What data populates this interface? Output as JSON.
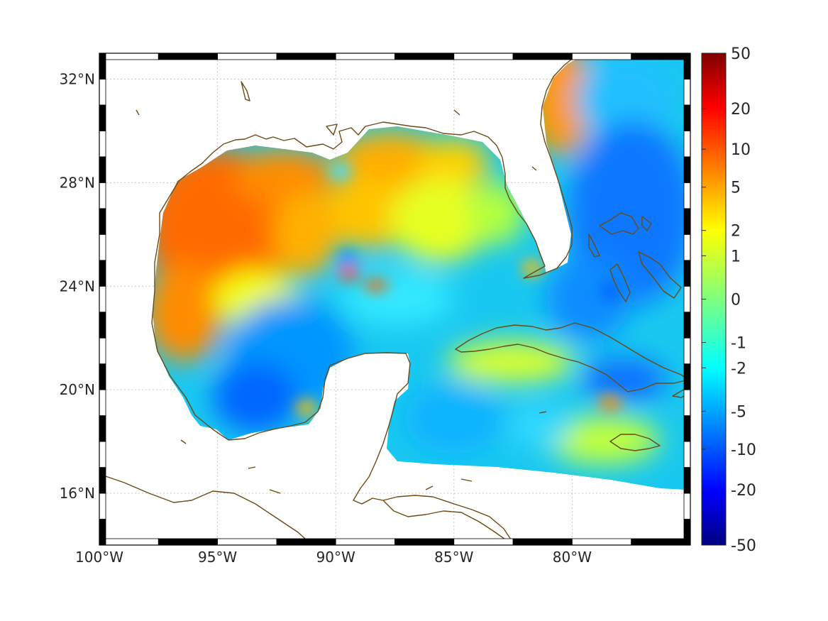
{
  "map": {
    "lon_range": [
      -100,
      -75
    ],
    "lat_range": [
      14,
      33
    ],
    "lon_ticks": [
      {
        "value": -100,
        "label": "100°W"
      },
      {
        "value": -95,
        "label": "95°W"
      },
      {
        "value": -90,
        "label": "90°W"
      },
      {
        "value": -85,
        "label": "85°W"
      },
      {
        "value": -80,
        "label": "80°W"
      }
    ],
    "lat_ticks": [
      {
        "value": 16,
        "label": "16°N"
      },
      {
        "value": 20,
        "label": "20°N"
      },
      {
        "value": 24,
        "label": "24°N"
      },
      {
        "value": 28,
        "label": "28°N"
      },
      {
        "value": 32,
        "label": "32°N"
      }
    ],
    "colorbar": {
      "colormap": "jet",
      "ticks": [
        {
          "value": 50,
          "label": "50"
        },
        {
          "value": 20,
          "label": "20"
        },
        {
          "value": 10,
          "label": "10"
        },
        {
          "value": 5,
          "label": "5"
        },
        {
          "value": 2,
          "label": "2"
        },
        {
          "value": 1,
          "label": "1"
        },
        {
          "value": 0,
          "label": "0"
        },
        {
          "value": -1,
          "label": "-1"
        },
        {
          "value": -2,
          "label": "-2"
        },
        {
          "value": -5,
          "label": "-5"
        },
        {
          "value": -10,
          "label": "-10"
        },
        {
          "value": -20,
          "label": "-20"
        },
        {
          "value": -50,
          "label": "-50"
        }
      ]
    },
    "coastline_color": "#6b4a14",
    "grid": true
  }
}
